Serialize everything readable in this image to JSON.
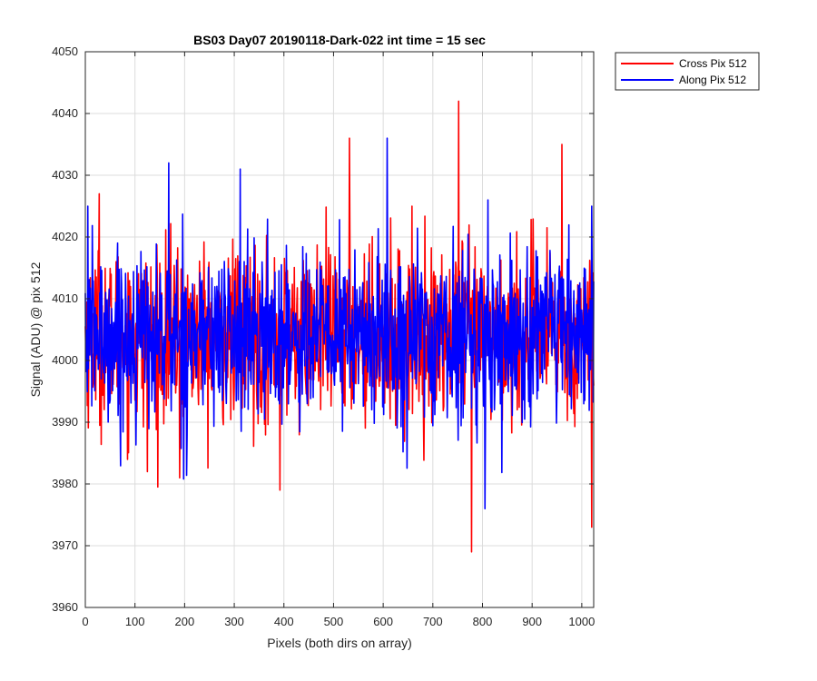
{
  "chart_data": {
    "type": "line",
    "title": "BS03 Day07 20190118-Dark-022 int time = 15 sec",
    "xlabel": "Pixels (both dirs on array)",
    "ylabel": "Signal (ADU) @ pix 512",
    "xlim": [
      0,
      1024
    ],
    "ylim": [
      3960,
      4050
    ],
    "xticks": [
      0,
      100,
      200,
      300,
      400,
      500,
      600,
      700,
      800,
      900,
      1000
    ],
    "yticks": [
      3960,
      3970,
      3980,
      3990,
      4000,
      4010,
      4020,
      4030,
      4040,
      4050
    ],
    "grid": true,
    "legend_position": "outside top-right",
    "series": [
      {
        "name": "Cross Pix 512",
        "color": "#ff0000",
        "note_points": "noise trace ~4004 mean; notable extrema listed",
        "extrema": [
          {
            "x": 28,
            "y": 4027
          },
          {
            "x": 125,
            "y": 3982
          },
          {
            "x": 190,
            "y": 3981
          },
          {
            "x": 392,
            "y": 3979
          },
          {
            "x": 532,
            "y": 4036
          },
          {
            "x": 752,
            "y": 4042
          },
          {
            "x": 778,
            "y": 3969
          },
          {
            "x": 960,
            "y": 4035
          },
          {
            "x": 1020,
            "y": 3973
          }
        ]
      },
      {
        "name": "Along Pix 512",
        "color": "#0000ff",
        "extrema": [
          {
            "x": 5,
            "y": 4025
          },
          {
            "x": 168,
            "y": 4032
          },
          {
            "x": 312,
            "y": 4031
          },
          {
            "x": 608,
            "y": 4036
          },
          {
            "x": 805,
            "y": 3976
          },
          {
            "x": 1020,
            "y": 4025
          }
        ]
      }
    ]
  }
}
